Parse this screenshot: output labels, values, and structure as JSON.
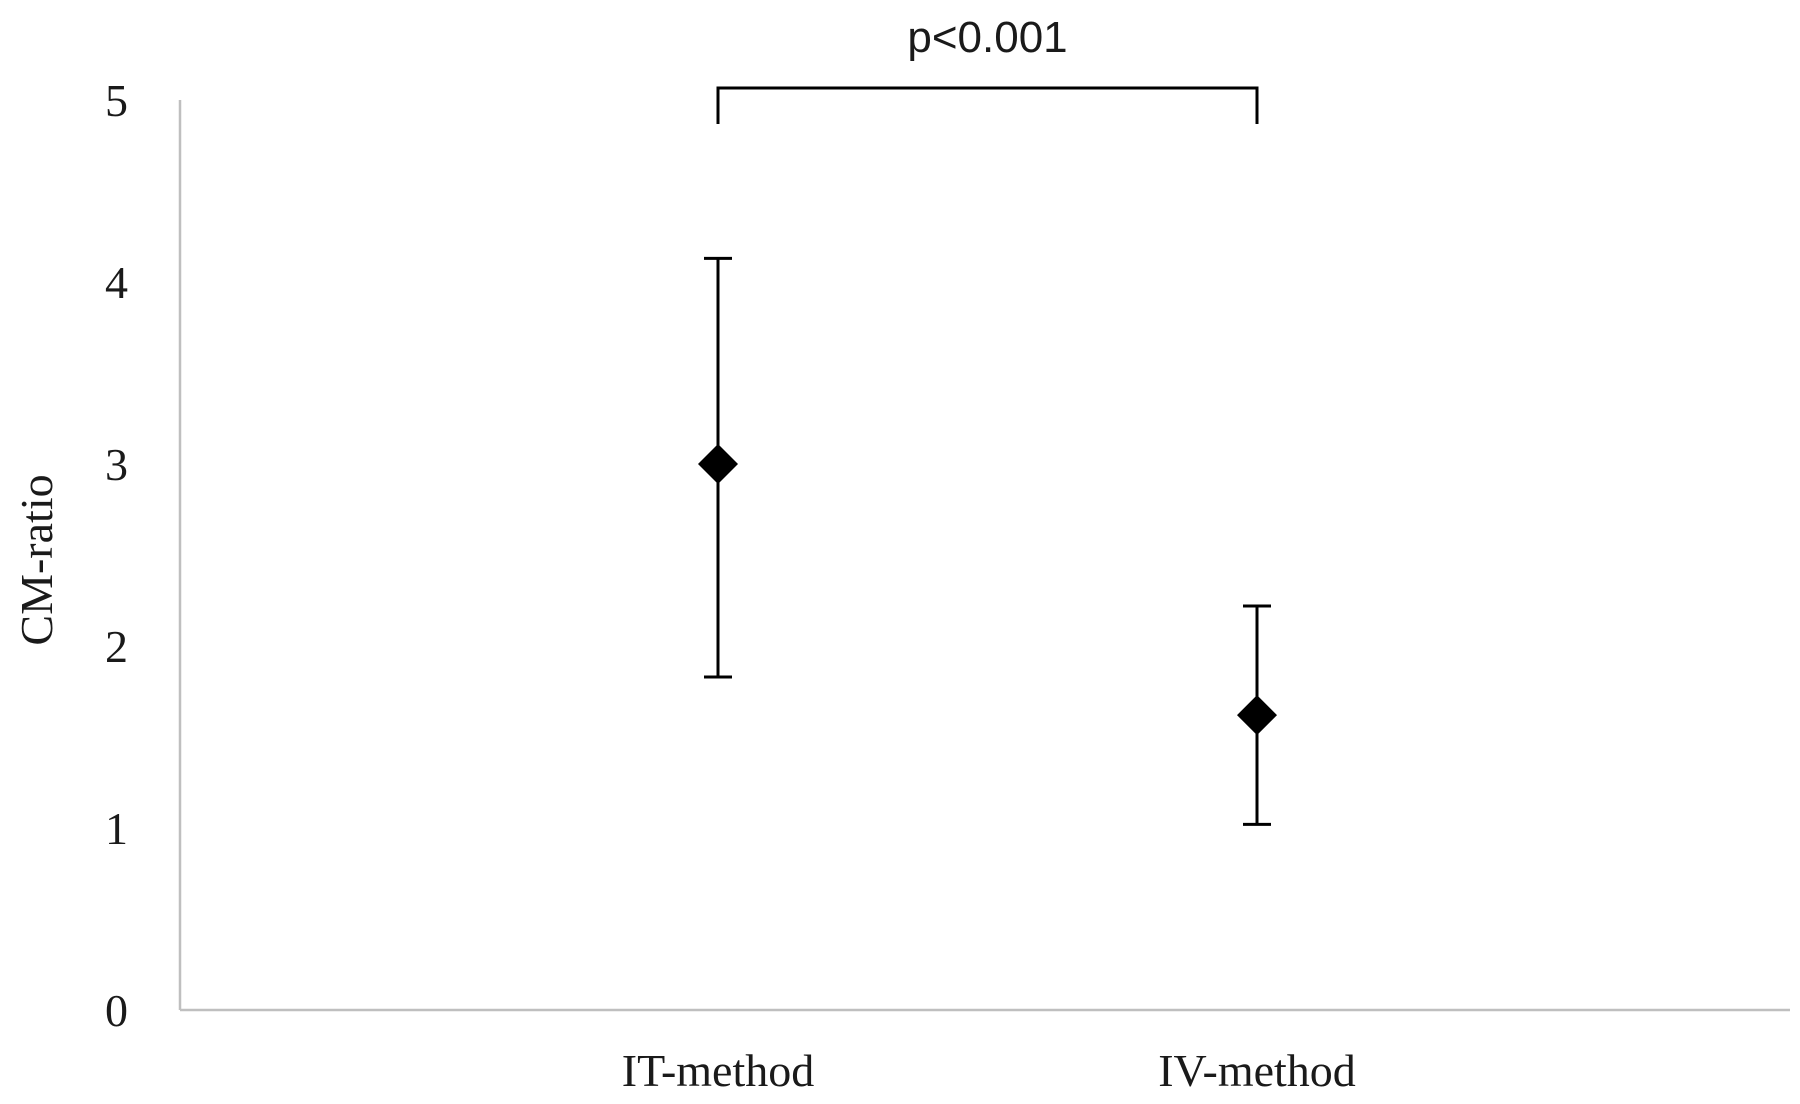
{
  "chart_data": {
    "type": "scatter",
    "title": "",
    "xlabel": "",
    "ylabel": "CM-ratio",
    "categories": [
      "IT-method",
      "IV-method"
    ],
    "ylim": [
      0,
      5
    ],
    "yticks": [
      "0",
      "1",
      "2",
      "3",
      "4",
      "5"
    ],
    "grid": false,
    "legend": "none",
    "series": [
      {
        "marker": "diamond",
        "color": "#000000",
        "values": [
          3.0,
          1.62
        ],
        "error_low": [
          1.83,
          1.02
        ],
        "error_high": [
          4.13,
          2.22
        ]
      }
    ],
    "annotations": [
      {
        "text": "p<0.001",
        "type": "bracket",
        "from": "IT-method",
        "to": "IV-method"
      }
    ]
  },
  "style": {
    "axis_color": "#bfbfbf",
    "mark_color": "#000000",
    "text_color": "#1a1a1a"
  }
}
